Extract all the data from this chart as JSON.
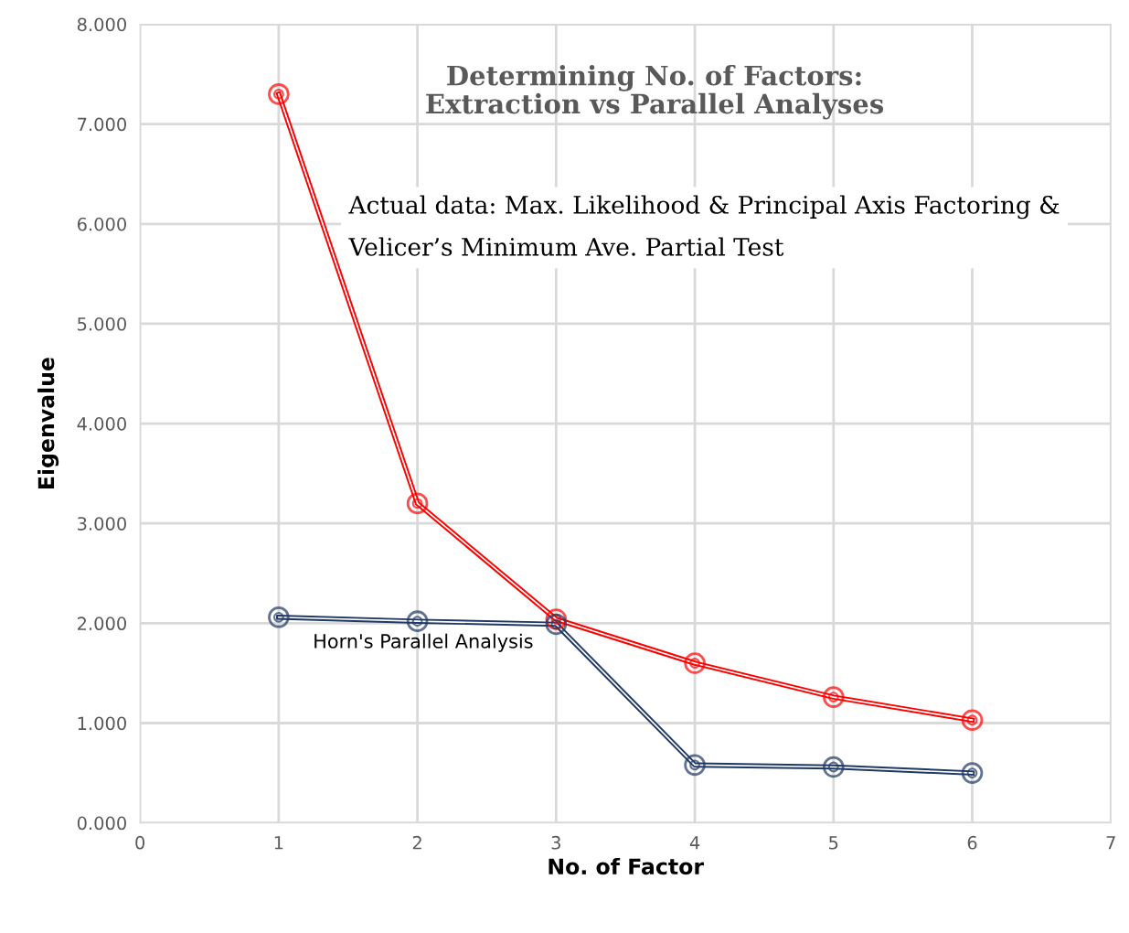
{
  "chart_data": {
    "type": "line",
    "title": "Determining No. of Factors:\nExtraction vs Parallel Analyses",
    "xlabel": "No. of Factor",
    "ylabel": "Eigenvalue",
    "x": [
      1,
      2,
      3,
      4,
      5,
      6
    ],
    "series": [
      {
        "name": "Actual data: Max. Likelihood & Principal Axis Factoring &\nVelicer’s Minimum Ave. Partial Test",
        "color": "#ff0000",
        "values": [
          7.3,
          3.2,
          2.04,
          1.6,
          1.26,
          1.03
        ]
      },
      {
        "name": "Horn's Parallel Analysis",
        "color": "#1f3864",
        "values": [
          2.06,
          2.02,
          1.99,
          0.58,
          0.56,
          0.5
        ]
      }
    ],
    "xlim": [
      0,
      7
    ],
    "xticks": [
      0,
      1,
      2,
      3,
      4,
      5,
      6,
      7
    ],
    "ylim": [
      0,
      8
    ],
    "yticks": [
      {
        "value": 0,
        "label": "0.000"
      },
      {
        "value": 1,
        "label": "1.000"
      },
      {
        "value": 2,
        "label": "2.000"
      },
      {
        "value": 3,
        "label": "3.000"
      },
      {
        "value": 4,
        "label": "4.000"
      },
      {
        "value": 5,
        "label": "5.000"
      },
      {
        "value": 6,
        "label": "6.000"
      },
      {
        "value": 7,
        "label": "7.000"
      },
      {
        "value": 8,
        "label": "8.000"
      }
    ],
    "grid": true,
    "marker": "circle",
    "line_style": "solid"
  }
}
